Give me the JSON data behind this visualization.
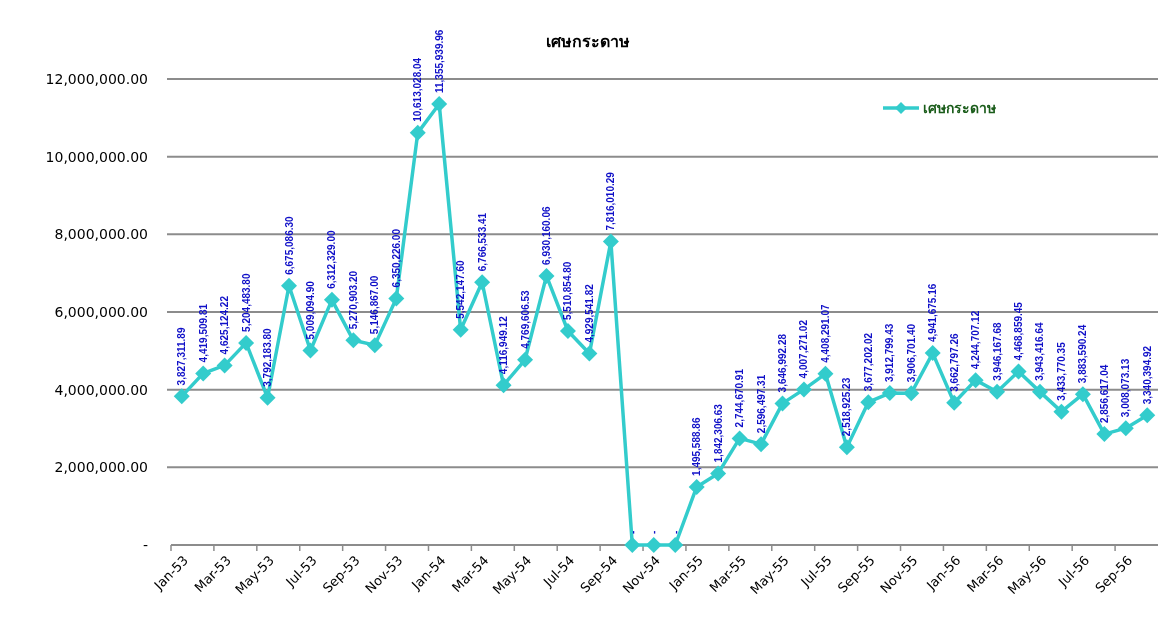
{
  "chart_data": {
    "type": "line",
    "title": "เศษกระดาษ",
    "categories": [
      "Jan-53",
      null,
      "Mar-53",
      null,
      "May-53",
      null,
      "Jul-53",
      null,
      "Sep-53",
      null,
      "Nov-53",
      null,
      "Jan-54",
      null,
      "Mar-54",
      null,
      "May-54",
      null,
      "Jul-54",
      null,
      "Sep-54",
      null,
      "Nov-54",
      null,
      "Jan-55",
      null,
      "Mar-55",
      null,
      "May-55",
      null,
      "Jul-55",
      null,
      "Sep-55",
      null,
      "Nov-55",
      null,
      "Jan-56",
      null,
      "Mar-56",
      null,
      "May-56",
      null,
      "Jul-56",
      null,
      "Sep-56",
      null
    ],
    "series": [
      {
        "name": "เศษกระดาษ",
        "color": "#33cccc",
        "values": [
          3827311.89,
          4419509.81,
          4625124.22,
          5204483.8,
          3792183.8,
          6675086.3,
          5009094.9,
          6312329.0,
          5270903.2,
          5146867.0,
          6350226.0,
          10613028.04,
          11355939.96,
          5542147.6,
          6766533.41,
          4116949.12,
          4769606.53,
          6930160.06,
          5510854.8,
          4929541.82,
          7816010.29,
          0,
          0,
          0,
          1495588.86,
          1842306.63,
          2744670.91,
          2596497.31,
          3646992.28,
          4007271.02,
          4408291.07,
          2518925.23,
          3677202.02,
          3912799.43,
          3906701.4,
          4941675.16,
          3662797.26,
          4244707.12,
          3946167.68,
          4468859.45,
          3943416.64,
          3433770.35,
          3883590.24,
          2856617.04,
          3008073.13,
          3340394.92
        ],
        "value_labels": [
          "3,827,311.89",
          "4,419,509.81",
          "4,625,124.22",
          "5,204,483.80",
          "3,792,183.80",
          "6,675,086.30",
          "5,009,094.90",
          "6,312,329.00",
          "5,270,903.20",
          "5,146,867.00",
          "6,350,226.00",
          "10,613,028.04",
          "11,355,939.96",
          "5,542,147.60",
          "6,766,533.41",
          "4,116,949.12",
          "4,769,606.53",
          "6,930,160.06",
          "5,510,854.80",
          "4,929,541.82",
          "7,816,010.29",
          "-",
          "-",
          "-",
          "1,495,588.86",
          "1,842,306.63",
          "2,744,670.91",
          "2,596,497.31",
          "3,646,992.28",
          "4,007,271.02",
          "4,408,291.07",
          "2,518,925.23",
          "3,677,202.02",
          "3,912,799.43",
          "3,906,701.40",
          "4,941,675.16",
          "3,662,797.26",
          "4,244,707.12",
          "3,946,167.68",
          "4,468,859.45",
          "3,943,416.64",
          "3,433,770.35",
          "3,883,590.24",
          "2,856,617.04",
          "3,008,073.13",
          "3,340,394.92"
        ]
      }
    ],
    "ylim": [
      0,
      12000000
    ],
    "yticks": [
      {
        "value": 0,
        "label": "-"
      },
      {
        "value": 2000000,
        "label": "2,000,000.00"
      },
      {
        "value": 4000000,
        "label": "4,000,000.00"
      },
      {
        "value": 6000000,
        "label": "6,000,000.00"
      },
      {
        "value": 8000000,
        "label": "8,000,000.00"
      },
      {
        "value": 10000000,
        "label": "10,000,000.00"
      },
      {
        "value": 12000000,
        "label": "12,000,000.00"
      }
    ],
    "grid": "y",
    "legend": "top right",
    "marker": "diamond",
    "line_style": "solid"
  }
}
